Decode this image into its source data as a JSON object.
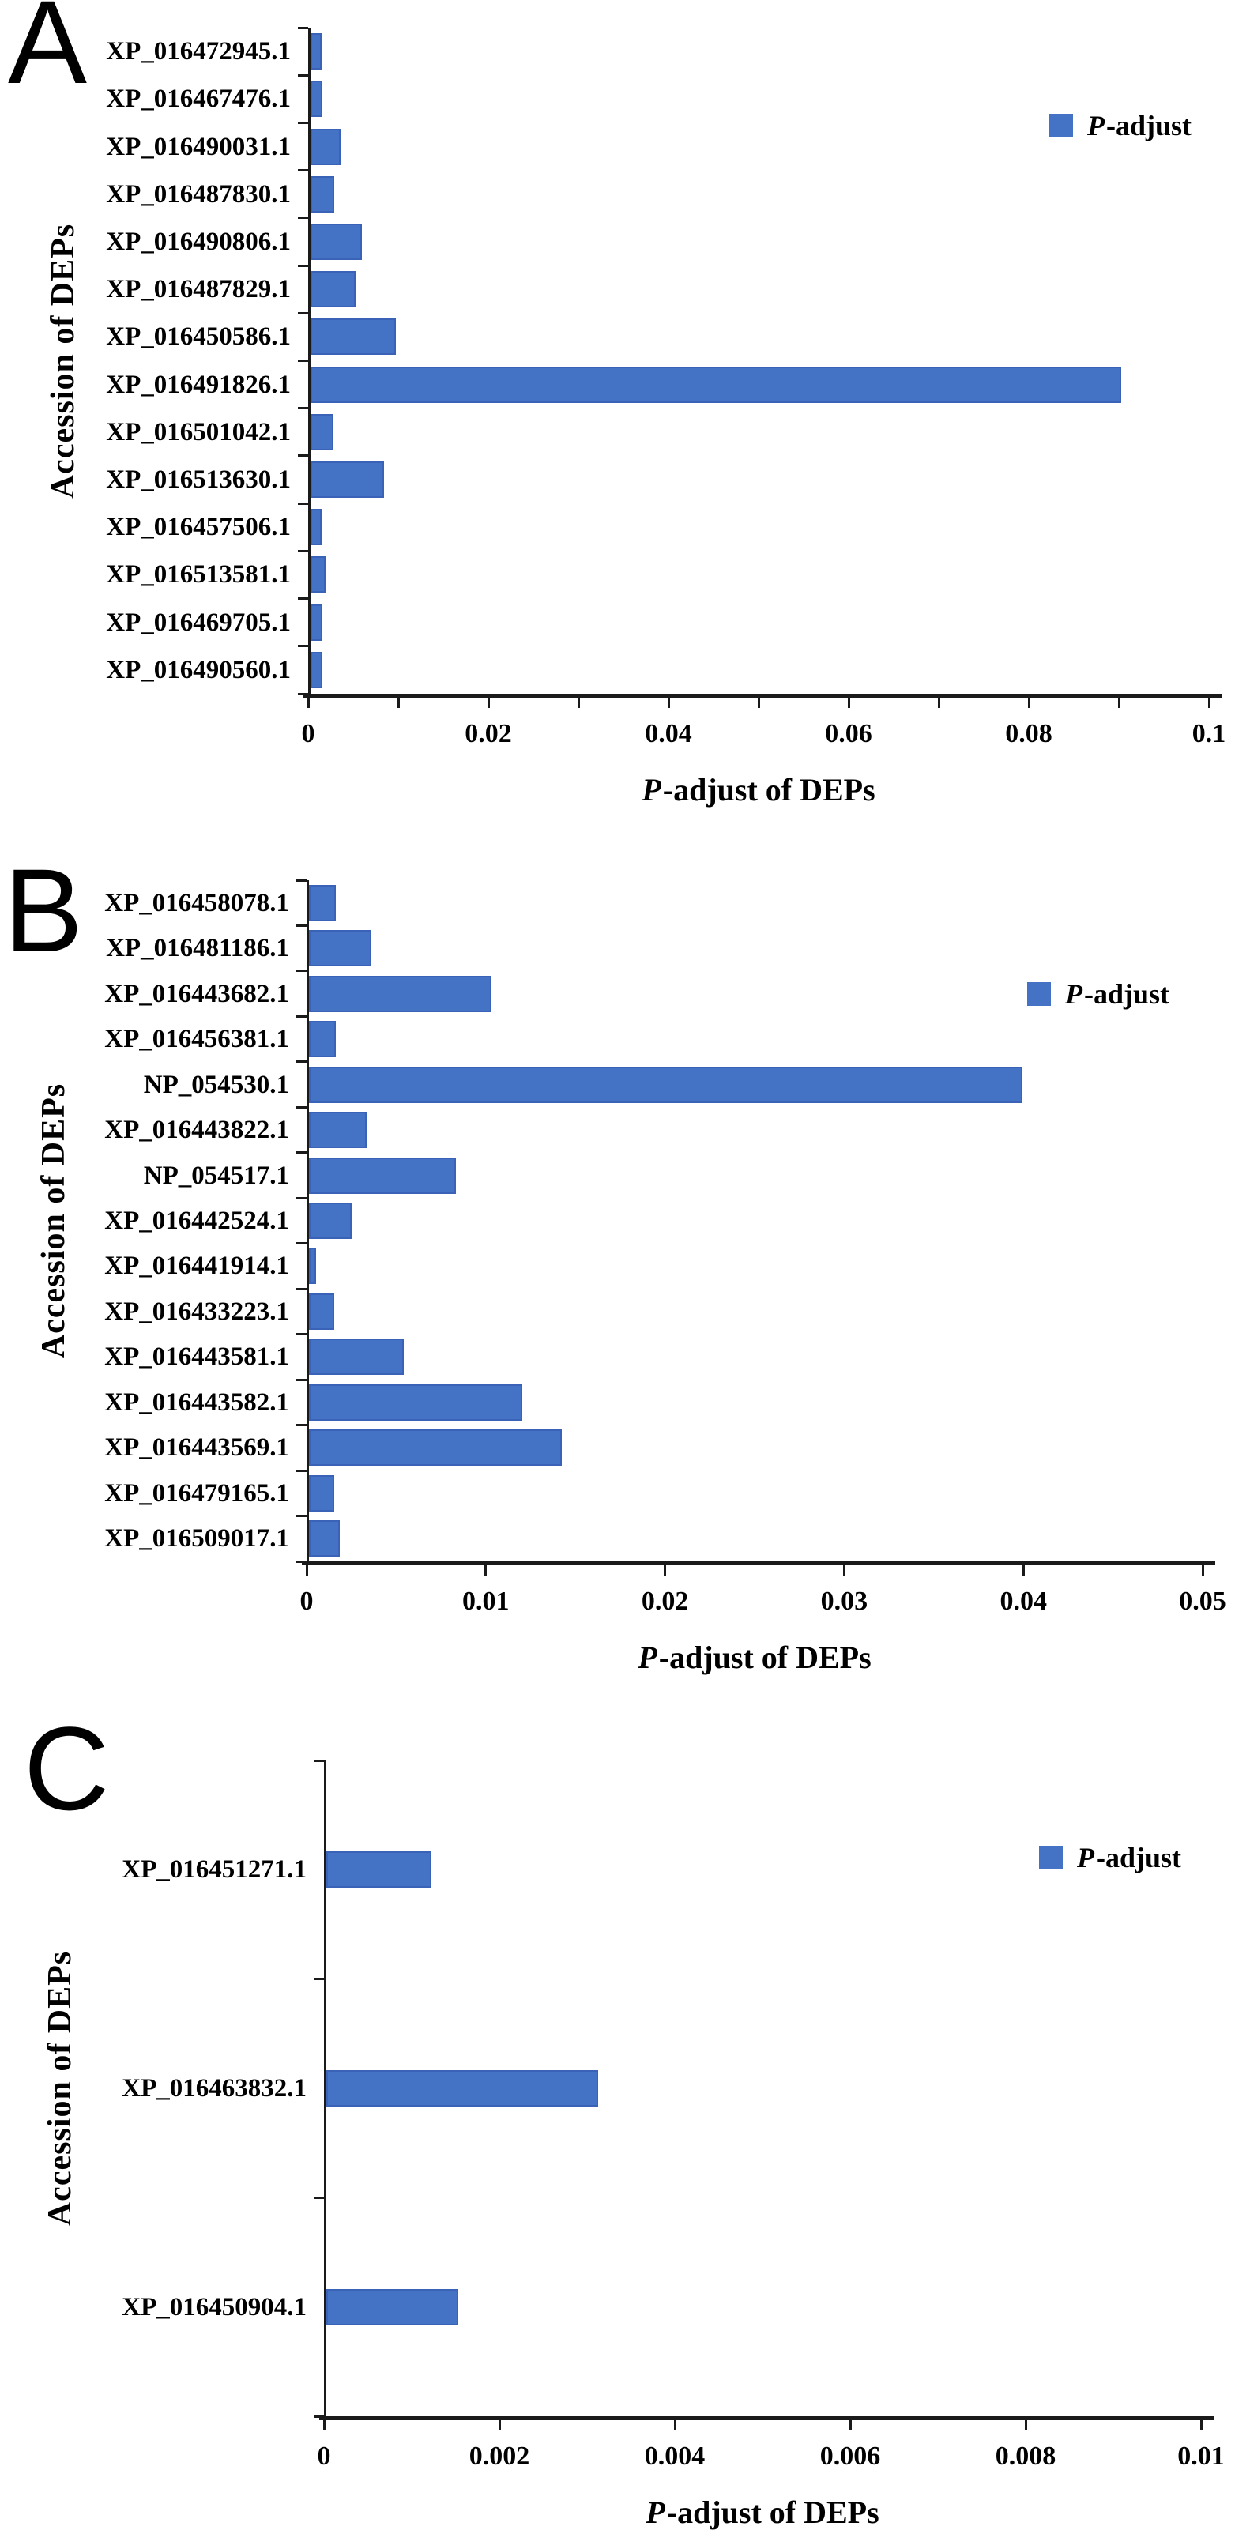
{
  "colors": {
    "bar_fill": "#4472C4",
    "bar_edge": "#3A63B8",
    "axis": "#1a1a1a",
    "text": "#000000",
    "background": "#ffffff"
  },
  "chart_data": [
    {
      "panel_label": "A",
      "type": "bar",
      "orientation": "horizontal",
      "xlabel": "P-adjust of DEPs",
      "xlabel_italic": "P",
      "xlabel_rest": "-adjust of DEPs",
      "ylabel": "Accession of DEPs",
      "legend_label": "P-adjust",
      "legend_italic": "P",
      "legend_rest": "-adjust",
      "legend_position": "top-right",
      "grid": false,
      "xlim": [
        0,
        0.1
      ],
      "xticks": [
        0,
        0.01,
        0.02,
        0.03,
        0.04,
        0.05,
        0.06,
        0.07,
        0.08,
        0.09,
        0.1
      ],
      "xtick_labels": [
        "0",
        "",
        "0.02",
        "",
        "0.04",
        "",
        "0.06",
        "",
        "0.08",
        "",
        "0.1"
      ],
      "categories": [
        "XP_016472945.1",
        "XP_016467476.1",
        "XP_016490031.1",
        "XP_016487830.1",
        "XP_016490806.1",
        "XP_016487829.1",
        "XP_016450586.1",
        "XP_016491826.1",
        "XP_016501042.1",
        "XP_016513630.1",
        "XP_016457506.1",
        "XP_016513581.1",
        "XP_016469705.1",
        "XP_016490560.1"
      ],
      "values": [
        0.0012,
        0.0013,
        0.0033,
        0.0026,
        0.0057,
        0.005,
        0.0095,
        0.09,
        0.0025,
        0.0082,
        0.0012,
        0.0017,
        0.0013,
        0.0013
      ]
    },
    {
      "panel_label": "B",
      "type": "bar",
      "orientation": "horizontal",
      "xlabel": "P-adjust of DEPs",
      "xlabel_italic": "P",
      "xlabel_rest": "-adjust of DEPs",
      "ylabel": "Accession of DEPs",
      "legend_label": "P-adjust",
      "legend_italic": "P",
      "legend_rest": "-adjust",
      "legend_position": "top-right",
      "grid": false,
      "xlim": [
        0,
        0.05
      ],
      "xticks": [
        0,
        0.01,
        0.02,
        0.03,
        0.04,
        0.05
      ],
      "xtick_labels": [
        "0",
        "0.01",
        "0.02",
        "0.03",
        "0.04",
        "0.05"
      ],
      "categories": [
        "XP_016458078.1",
        "XP_016481186.1",
        "XP_016443682.1",
        "XP_016456381.1",
        "NP_054530.1",
        "XP_016443822.1",
        "NP_054517.1",
        "XP_016442524.1",
        "XP_016441914.1",
        "XP_016433223.1",
        "XP_016443581.1",
        "XP_016443582.1",
        "XP_016443569.1",
        "XP_016479165.1",
        "XP_016509017.1"
      ],
      "values": [
        0.0015,
        0.0035,
        0.0102,
        0.0015,
        0.0398,
        0.0032,
        0.0082,
        0.0024,
        0.0004,
        0.0014,
        0.0053,
        0.0119,
        0.0141,
        0.0014,
        0.0017
      ]
    },
    {
      "panel_label": "C",
      "type": "bar",
      "orientation": "horizontal",
      "xlabel": "P-adjust of DEPs",
      "xlabel_italic": "P",
      "xlabel_rest": "-adjust of DEPs",
      "ylabel": "Accession of DEPs",
      "legend_label": "P-adjust",
      "legend_italic": "P",
      "legend_rest": "-adjust",
      "legend_position": "top-right",
      "grid": false,
      "xlim": [
        0,
        0.01
      ],
      "xticks": [
        0,
        0.002,
        0.004,
        0.006,
        0.008,
        0.01
      ],
      "xtick_labels": [
        "0",
        "0.002",
        "0.004",
        "0.006",
        "0.008",
        "0.01"
      ],
      "categories": [
        "XP_016451271.1",
        "XP_016463832.1",
        "XP_016450904.1"
      ],
      "values": [
        0.0012,
        0.0031,
        0.0015
      ]
    }
  ]
}
